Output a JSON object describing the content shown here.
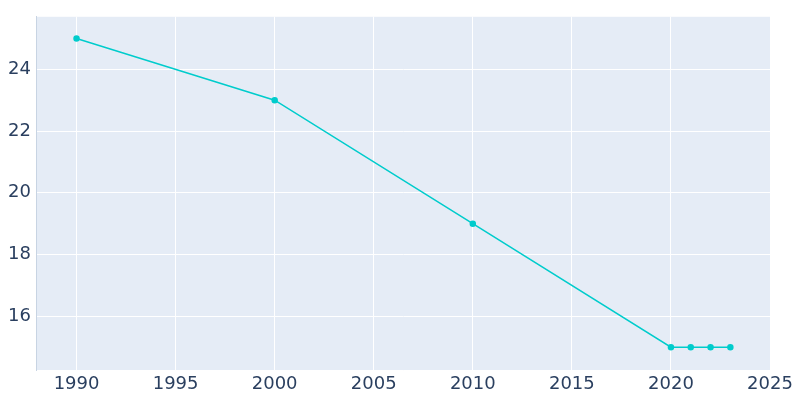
{
  "chart_data": {
    "type": "line",
    "x": [
      1990,
      2000,
      2010,
      2020,
      2021,
      2022,
      2023
    ],
    "values": [
      25,
      23,
      19,
      15,
      15,
      15,
      15
    ],
    "color": "#00cccc",
    "marker": "circle",
    "xlim": [
      1988,
      2025
    ],
    "xticks": [
      1990,
      1995,
      2000,
      2005,
      2010,
      2015,
      2020,
      2025
    ],
    "ylim": [
      14.25,
      25.7
    ],
    "yticks": [
      16,
      18,
      20,
      22,
      24
    ],
    "grid": true
  }
}
